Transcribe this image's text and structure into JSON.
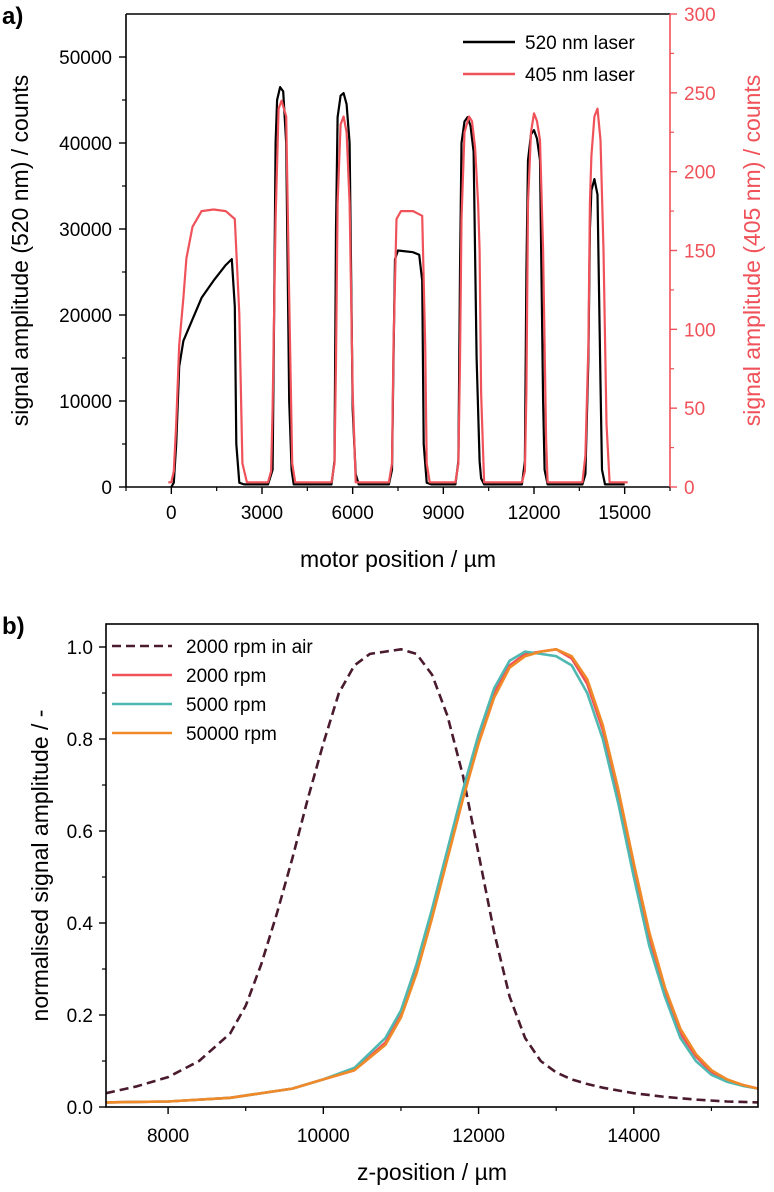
{
  "chart_data": [
    {
      "panel": "a)",
      "type": "line",
      "title": "",
      "xlabel": "motor position / µm",
      "ylabel": "signal amplitude (520 nm) / counts",
      "y2label": "signal amplitude (405 nm) / counts",
      "xlim": [
        -1500,
        16500
      ],
      "ylim": [
        0,
        55000
      ],
      "y2lim": [
        0,
        300
      ],
      "xticks": [
        0,
        3000,
        6000,
        9000,
        12000,
        15000
      ],
      "yticks": [
        0,
        10000,
        20000,
        30000,
        40000,
        50000
      ],
      "y2ticks": [
        0,
        50,
        100,
        150,
        200,
        250,
        300
      ],
      "grid": false,
      "legend_position": "top-right",
      "colors": {
        "axis_right": "#f0525a"
      },
      "series": [
        {
          "name": "520 nm laser",
          "axis": "left",
          "color": "#000000",
          "x": [
            0,
            80,
            160,
            260,
            400,
            700,
            1000,
            1400,
            1800,
            2000,
            2100,
            2150,
            2250,
            2400,
            3200,
            3350,
            3400,
            3450,
            3500,
            3600,
            3700,
            3800,
            3900,
            3980,
            4050,
            5300,
            5400,
            5450,
            5500,
            5600,
            5700,
            5800,
            5900,
            6000,
            6100,
            6200,
            7200,
            7300,
            7350,
            7400,
            7500,
            8000,
            8200,
            8300,
            8350,
            8450,
            8600,
            9400,
            9500,
            9550,
            9600,
            9700,
            9800,
            9900,
            10000,
            10100,
            10200,
            10250,
            10350,
            11600,
            11700,
            11750,
            11800,
            11900,
            12000,
            12100,
            12200,
            12300,
            12350,
            12450,
            13600,
            13700,
            13800,
            13850,
            13900,
            14000,
            14100,
            14200,
            14250,
            14350,
            15000
          ],
          "values": [
            0,
            500,
            5000,
            14000,
            17000,
            19500,
            22000,
            24000,
            25800,
            26500,
            21000,
            5000,
            500,
            300,
            300,
            2000,
            20000,
            40000,
            45000,
            46500,
            46000,
            40000,
            10000,
            2000,
            300,
            300,
            3000,
            30000,
            43000,
            45500,
            45800,
            44500,
            40000,
            9000,
            1500,
            300,
            300,
            2000,
            15000,
            26500,
            27500,
            27300,
            27000,
            24000,
            5000,
            500,
            300,
            300,
            3000,
            25000,
            40000,
            42500,
            43000,
            42000,
            39000,
            15000,
            3000,
            1000,
            300,
            300,
            3000,
            25000,
            38000,
            41000,
            41500,
            40500,
            38000,
            10000,
            2000,
            300,
            300,
            1500,
            15000,
            30000,
            34500,
            35800,
            34000,
            12000,
            2000,
            300,
            300
          ]
        },
        {
          "name": "405 nm laser",
          "axis": "right",
          "color": "#f0525a",
          "x": [
            -100,
            0,
            80,
            160,
            260,
            400,
            500,
            700,
            1000,
            1400,
            1800,
            2100,
            2250,
            2350,
            2500,
            3200,
            3300,
            3350,
            3450,
            3550,
            3650,
            3800,
            3900,
            4000,
            4100,
            5300,
            5400,
            5450,
            5500,
            5600,
            5700,
            5800,
            5900,
            6000,
            6100,
            7200,
            7300,
            7350,
            7450,
            7600,
            8000,
            8300,
            8400,
            8450,
            8550,
            9400,
            9500,
            9550,
            9600,
            9700,
            9850,
            9950,
            10050,
            10150,
            10200,
            10250,
            10350,
            11600,
            11700,
            11750,
            11800,
            11900,
            12000,
            12100,
            12200,
            12300,
            12400,
            12450,
            13600,
            13700,
            13800,
            13850,
            13900,
            14000,
            14100,
            14200,
            14300,
            14400,
            14500,
            15000,
            15100
          ],
          "values": [
            3,
            3,
            10,
            40,
            90,
            120,
            145,
            165,
            175,
            176,
            175,
            170,
            110,
            15,
            3,
            3,
            10,
            50,
            170,
            240,
            245,
            235,
            120,
            15,
            3,
            3,
            15,
            80,
            180,
            230,
            235,
            225,
            180,
            60,
            3,
            3,
            15,
            90,
            170,
            175,
            175,
            172,
            90,
            15,
            3,
            3,
            15,
            80,
            170,
            225,
            235,
            232,
            215,
            180,
            150,
            60,
            3,
            3,
            10,
            60,
            180,
            225,
            237,
            232,
            220,
            150,
            30,
            3,
            3,
            20,
            90,
            180,
            210,
            235,
            240,
            220,
            150,
            40,
            3,
            3,
            3
          ]
        }
      ]
    },
    {
      "panel": "b)",
      "type": "line",
      "title": "",
      "xlabel": "z-position / µm",
      "ylabel": "normalised signal amplitude / -",
      "xlim": [
        7200,
        15600
      ],
      "ylim": [
        0,
        1.05
      ],
      "xticks": [
        8000,
        10000,
        12000,
        14000
      ],
      "yticks": [
        0.0,
        0.2,
        0.4,
        0.6,
        0.8,
        1.0
      ],
      "grid": false,
      "legend_position": "top-left",
      "series": [
        {
          "name": "2000 rpm in air",
          "color": "#4a1a2e",
          "dashed": true,
          "x": [
            7200,
            7600,
            8000,
            8400,
            8800,
            9000,
            9200,
            9400,
            9600,
            9800,
            10000,
            10200,
            10400,
            10600,
            10800,
            11000,
            11200,
            11400,
            11600,
            11800,
            12000,
            12200,
            12400,
            12600,
            12800,
            13000,
            13200,
            13400,
            13600,
            14000,
            14400,
            14800,
            15200,
            15600
          ],
          "values": [
            0.03,
            0.045,
            0.065,
            0.1,
            0.16,
            0.22,
            0.31,
            0.42,
            0.54,
            0.67,
            0.79,
            0.9,
            0.96,
            0.985,
            0.99,
            0.995,
            0.985,
            0.94,
            0.85,
            0.72,
            0.55,
            0.38,
            0.24,
            0.15,
            0.1,
            0.075,
            0.06,
            0.05,
            0.042,
            0.03,
            0.022,
            0.016,
            0.012,
            0.01
          ]
        },
        {
          "name": "2000 rpm",
          "color": "#f0525a",
          "x": [
            7200,
            8000,
            8800,
            9600,
            10000,
            10400,
            10800,
            11000,
            11200,
            11400,
            11600,
            11800,
            12000,
            12200,
            12400,
            12600,
            12800,
            13000,
            13200,
            13400,
            13600,
            13800,
            14000,
            14200,
            14400,
            14600,
            14800,
            15000,
            15200,
            15400,
            15600
          ],
          "values": [
            0.01,
            0.012,
            0.02,
            0.04,
            0.06,
            0.08,
            0.14,
            0.2,
            0.3,
            0.42,
            0.55,
            0.68,
            0.8,
            0.9,
            0.96,
            0.985,
            0.99,
            0.995,
            0.975,
            0.92,
            0.82,
            0.68,
            0.52,
            0.37,
            0.25,
            0.16,
            0.11,
            0.075,
            0.058,
            0.048,
            0.04
          ]
        },
        {
          "name": "5000 rpm",
          "color": "#4fb8b0",
          "x": [
            7200,
            8000,
            8800,
            9600,
            10000,
            10400,
            10800,
            11000,
            11200,
            11400,
            11600,
            11800,
            12000,
            12200,
            12400,
            12600,
            12800,
            13000,
            13200,
            13400,
            13600,
            13800,
            14000,
            14200,
            14400,
            14600,
            14800,
            15000,
            15200,
            15400,
            15600
          ],
          "values": [
            0.01,
            0.012,
            0.02,
            0.04,
            0.06,
            0.085,
            0.15,
            0.21,
            0.31,
            0.43,
            0.56,
            0.69,
            0.81,
            0.91,
            0.97,
            0.99,
            0.985,
            0.98,
            0.96,
            0.9,
            0.8,
            0.66,
            0.5,
            0.35,
            0.24,
            0.15,
            0.1,
            0.07,
            0.055,
            0.046,
            0.04
          ]
        },
        {
          "name": "50000 rpm",
          "color": "#f08a28",
          "x": [
            7200,
            8000,
            8800,
            9600,
            10000,
            10400,
            10800,
            11000,
            11200,
            11400,
            11600,
            11800,
            12000,
            12200,
            12400,
            12600,
            12800,
            13000,
            13200,
            13400,
            13600,
            13800,
            14000,
            14200,
            14400,
            14600,
            14800,
            15000,
            15200,
            15400,
            15600
          ],
          "values": [
            0.01,
            0.012,
            0.02,
            0.04,
            0.06,
            0.08,
            0.135,
            0.195,
            0.29,
            0.41,
            0.54,
            0.67,
            0.79,
            0.89,
            0.955,
            0.98,
            0.99,
            0.995,
            0.98,
            0.93,
            0.83,
            0.69,
            0.53,
            0.38,
            0.26,
            0.17,
            0.115,
            0.08,
            0.06,
            0.048,
            0.04
          ]
        }
      ]
    }
  ]
}
